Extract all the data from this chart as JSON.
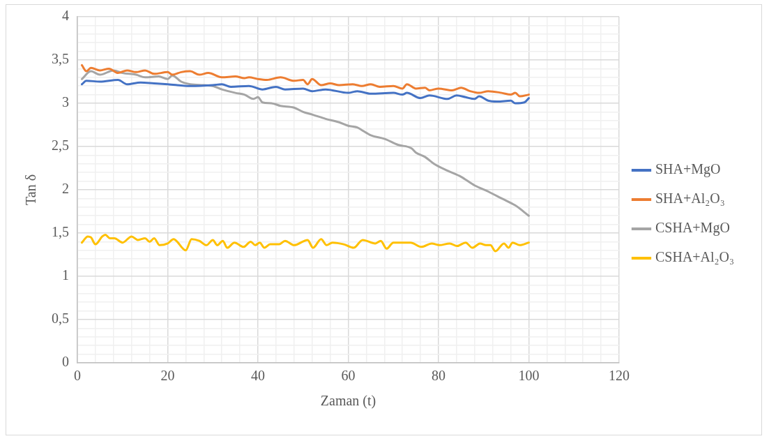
{
  "chart_data": {
    "type": "line",
    "xlabel": "Zaman (t)",
    "ylabel": "Tan δ",
    "legend": "right",
    "grid": true,
    "xlim": [
      0,
      120
    ],
    "ylim": [
      0,
      4
    ],
    "xticks": [
      0,
      {
        "value": 4,
        "label": null
      },
      {
        "value": 8,
        "label": null
      },
      {
        "value": 12,
        "label": null
      },
      {
        "value": 16,
        "label": null
      },
      20,
      {
        "value": 24,
        "label": null
      },
      {
        "value": 28,
        "label": null
      },
      {
        "value": 32,
        "label": null
      },
      {
        "value": 36,
        "label": null
      },
      40,
      {
        "value": 44,
        "label": null
      },
      {
        "value": 48,
        "label": null
      },
      {
        "value": 52,
        "label": null
      },
      {
        "value": 56,
        "label": null
      },
      60,
      {
        "value": 64,
        "label": null
      },
      {
        "value": 68,
        "label": null
      },
      {
        "value": 72,
        "label": null
      },
      {
        "value": 76,
        "label": null
      },
      80,
      {
        "value": 84,
        "label": null
      },
      {
        "value": 88,
        "label": null
      },
      {
        "value": 92,
        "label": null
      },
      {
        "value": 96,
        "label": null
      },
      100,
      {
        "value": 104,
        "label": null
      },
      {
        "value": 108,
        "label": null
      },
      {
        "value": 112,
        "label": null
      },
      {
        "value": 116,
        "label": null
      },
      120
    ],
    "yticks": [
      0,
      {
        "value": 0.1,
        "label": null
      },
      {
        "value": 0.2,
        "label": null
      },
      {
        "value": 0.3,
        "label": null
      },
      {
        "value": 0.4,
        "label": null
      },
      {
        "value": 0.5,
        "label": "0,5"
      },
      {
        "value": 0.6,
        "label": null
      },
      {
        "value": 0.7,
        "label": null
      },
      {
        "value": 0.8,
        "label": null
      },
      {
        "value": 0.9,
        "label": null
      },
      1,
      {
        "value": 1.1,
        "label": null
      },
      {
        "value": 1.2,
        "label": null
      },
      {
        "value": 1.3,
        "label": null
      },
      {
        "value": 1.4,
        "label": null
      },
      {
        "value": 1.5,
        "label": "1,5"
      },
      {
        "value": 1.6,
        "label": null
      },
      {
        "value": 1.7,
        "label": null
      },
      {
        "value": 1.8,
        "label": null
      },
      {
        "value": 1.9,
        "label": null
      },
      2,
      {
        "value": 2.1,
        "label": null
      },
      {
        "value": 2.2,
        "label": null
      },
      {
        "value": 2.3,
        "label": null
      },
      {
        "value": 2.4,
        "label": null
      },
      {
        "value": 2.5,
        "label": "2,5"
      },
      {
        "value": 2.6,
        "label": null
      },
      {
        "value": 2.7,
        "label": null
      },
      {
        "value": 2.8,
        "label": null
      },
      {
        "value": 2.9,
        "label": null
      },
      3,
      {
        "value": 3.1,
        "label": null
      },
      {
        "value": 3.2,
        "label": null
      },
      {
        "value": 3.3,
        "label": null
      },
      {
        "value": 3.4,
        "label": null
      },
      {
        "value": 3.5,
        "label": "3,5"
      },
      {
        "value": 3.6,
        "label": null
      },
      {
        "value": 3.7,
        "label": null
      },
      {
        "value": 3.8,
        "label": null
      },
      {
        "value": 3.9,
        "label": null
      },
      4
    ],
    "series": [
      {
        "name": "SHA+MgO",
        "color": "#4472c4",
        "x": [
          1,
          2,
          5,
          9,
          11,
          14,
          17,
          20,
          25,
          30,
          32,
          34,
          38,
          41,
          44,
          46,
          50,
          52,
          55,
          60,
          62,
          65,
          70,
          72,
          73,
          76,
          78,
          82,
          84,
          86,
          88,
          89,
          91,
          93,
          96,
          97,
          99,
          100
        ],
        "values": [
          3.22,
          3.26,
          3.25,
          3.27,
          3.22,
          3.24,
          3.23,
          3.22,
          3.2,
          3.21,
          3.22,
          3.19,
          3.2,
          3.16,
          3.19,
          3.16,
          3.17,
          3.14,
          3.16,
          3.12,
          3.14,
          3.11,
          3.12,
          3.1,
          3.12,
          3.06,
          3.09,
          3.05,
          3.09,
          3.07,
          3.05,
          3.08,
          3.03,
          3.02,
          3.03,
          3,
          3.01,
          3.06
        ]
      },
      {
        "name": "SHA+Al₂O₃",
        "color": "#ed7d31",
        "x": [
          1,
          2,
          3,
          5,
          7,
          9,
          11,
          13,
          15,
          17,
          20,
          21,
          23,
          25,
          27,
          29,
          32,
          35,
          37,
          38,
          40,
          42,
          45,
          48,
          50,
          51,
          52,
          54,
          56,
          58,
          61,
          63,
          65,
          67,
          70,
          72,
          73,
          75,
          77,
          78,
          80,
          83,
          85,
          87,
          89,
          91,
          94,
          96,
          97,
          98,
          100
        ],
        "values": [
          3.44,
          3.37,
          3.41,
          3.38,
          3.4,
          3.35,
          3.38,
          3.36,
          3.38,
          3.34,
          3.36,
          3.33,
          3.36,
          3.37,
          3.33,
          3.35,
          3.3,
          3.31,
          3.29,
          3.3,
          3.28,
          3.27,
          3.3,
          3.26,
          3.27,
          3.22,
          3.28,
          3.21,
          3.23,
          3.21,
          3.22,
          3.2,
          3.22,
          3.19,
          3.2,
          3.17,
          3.22,
          3.17,
          3.18,
          3.15,
          3.17,
          3.15,
          3.18,
          3.14,
          3.12,
          3.14,
          3.12,
          3.1,
          3.12,
          3.08,
          3.1
        ]
      },
      {
        "name": "CSHA+MgO",
        "color": "#a5a5a5",
        "x": [
          1,
          3,
          5,
          8,
          10,
          13,
          15,
          18,
          20,
          21,
          23,
          25,
          28,
          30,
          32,
          35,
          37,
          39,
          40,
          41,
          43,
          45,
          48,
          50,
          52,
          55,
          58,
          60,
          62,
          63,
          65,
          68,
          71,
          74,
          75,
          77,
          79,
          82,
          85,
          88,
          91,
          94,
          97,
          100
        ],
        "values": [
          3.28,
          3.37,
          3.33,
          3.38,
          3.35,
          3.33,
          3.3,
          3.31,
          3.28,
          3.32,
          3.25,
          3.22,
          3.21,
          3.2,
          3.16,
          3.12,
          3.1,
          3.05,
          3.07,
          3.01,
          3,
          2.97,
          2.95,
          2.9,
          2.87,
          2.82,
          2.78,
          2.74,
          2.72,
          2.69,
          2.63,
          2.59,
          2.52,
          2.48,
          2.43,
          2.38,
          2.3,
          2.22,
          2.15,
          2.05,
          1.98,
          1.9,
          1.82,
          1.7
        ]
      },
      {
        "name": "CSHA+Al₂O₃",
        "color": "#ffc000",
        "x": [
          1,
          2.3,
          3,
          4,
          5.5,
          6.2,
          7.2,
          8.2,
          10,
          12,
          13.4,
          15,
          16,
          17,
          18.2,
          20,
          21.3,
          24,
          25.3,
          27,
          28.6,
          30,
          31,
          32.2,
          33.2,
          34.8,
          36.8,
          38.4,
          39.4,
          40.4,
          41.4,
          42.7,
          44.7,
          46,
          48,
          51,
          52.2,
          54,
          55.2,
          56.5,
          59,
          61.2,
          63.2,
          66,
          67.2,
          68.5,
          70,
          71.5,
          73.8,
          76.2,
          78.5,
          80.2,
          82.5,
          84.1,
          86,
          87.5,
          89.2,
          90.5,
          91.5,
          92.6,
          94.5,
          95.5,
          96.4,
          98,
          100
        ],
        "values": [
          1.39,
          1.46,
          1.45,
          1.37,
          1.46,
          1.48,
          1.44,
          1.44,
          1.39,
          1.46,
          1.42,
          1.44,
          1.4,
          1.44,
          1.36,
          1.38,
          1.43,
          1.3,
          1.43,
          1.41,
          1.36,
          1.42,
          1.36,
          1.41,
          1.33,
          1.39,
          1.34,
          1.4,
          1.36,
          1.39,
          1.33,
          1.37,
          1.37,
          1.41,
          1.36,
          1.42,
          1.33,
          1.43,
          1.36,
          1.39,
          1.37,
          1.33,
          1.42,
          1.38,
          1.41,
          1.32,
          1.39,
          1.39,
          1.39,
          1.34,
          1.38,
          1.36,
          1.38,
          1.35,
          1.39,
          1.33,
          1.38,
          1.36,
          1.36,
          1.29,
          1.38,
          1.33,
          1.39,
          1.36,
          1.39
        ]
      }
    ]
  }
}
